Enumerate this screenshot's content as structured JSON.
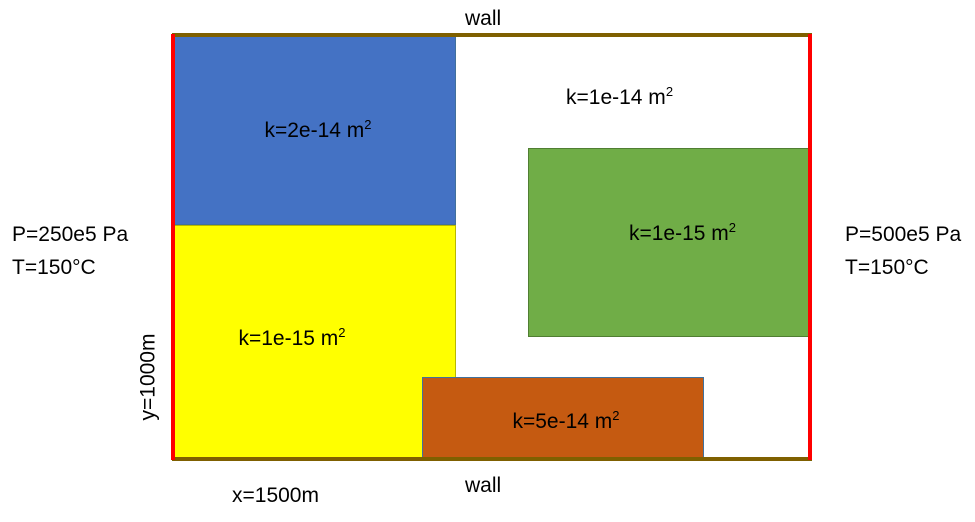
{
  "walls": {
    "top_label": "wall",
    "bottom_label": "wall"
  },
  "boundary_left": {
    "pressure": "P=250e5 Pa",
    "temperature": "T=150°C"
  },
  "boundary_right": {
    "pressure": "P=500e5 Pa",
    "temperature": "T=150°C"
  },
  "dimensions": {
    "x": "x=1500m",
    "y": "y=1000m"
  },
  "regions": {
    "blue": {
      "label": "k=2e-14 m",
      "exponent": "2",
      "color": "#4472c4"
    },
    "background": {
      "label": "k=1e-14 m",
      "exponent": "2",
      "color": "#ffffff"
    },
    "green": {
      "label": "k=1e-15 m",
      "exponent": "2",
      "color": "#70ad47"
    },
    "yellow": {
      "label": "k=1e-15 m",
      "exponent": "2",
      "color": "#ffff00"
    },
    "orange": {
      "label": "k=5e-14 m",
      "exponent": "2",
      "color": "#c55a11"
    }
  },
  "colors": {
    "wall": "#7f6000",
    "boundary": "#ff0000",
    "region_border": "#41719c"
  }
}
